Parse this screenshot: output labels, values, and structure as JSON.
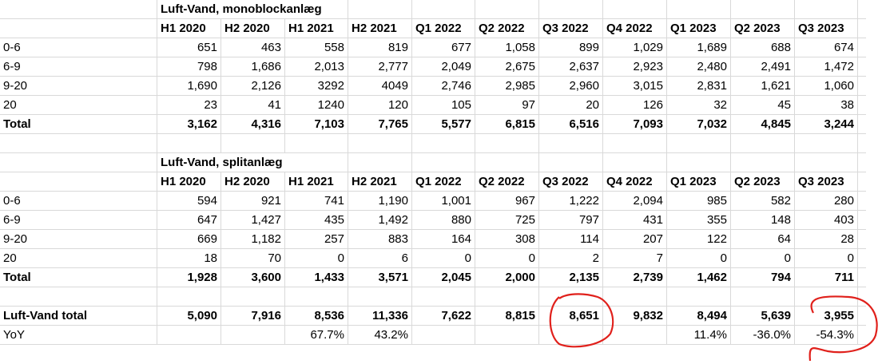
{
  "tables": [
    {
      "title": "Luft-Vand, monoblockanlæg",
      "periods": [
        "H1 2020",
        "H2 2020",
        "H1 2021",
        "H2 2021",
        "Q1 2022",
        "Q2 2022",
        "Q3 2022",
        "Q4 2022",
        "Q1 2023",
        "Q2 2023",
        "Q3 2023"
      ],
      "rows": [
        {
          "label": "0-6",
          "values": [
            "651",
            "463",
            "558",
            "819",
            "677",
            "1,058",
            "899",
            "1,029",
            "1,689",
            "688",
            "674"
          ]
        },
        {
          "label": "6-9",
          "values": [
            "798",
            "1,686",
            "2,013",
            "2,777",
            "2,049",
            "2,675",
            "2,637",
            "2,923",
            "2,480",
            "2,491",
            "1,472"
          ]
        },
        {
          "label": "9-20",
          "values": [
            "1,690",
            "2,126",
            "3292",
            "4049",
            "2,746",
            "2,985",
            "2,960",
            "3,015",
            "2,831",
            "1,621",
            "1,060"
          ]
        },
        {
          "label": "20",
          "values": [
            "23",
            "41",
            "1240",
            "120",
            "105",
            "97",
            "20",
            "126",
            "32",
            "45",
            "38"
          ]
        },
        {
          "label": "Total",
          "values": [
            "3,162",
            "4,316",
            "7,103",
            "7,765",
            "5,577",
            "6,815",
            "6,516",
            "7,093",
            "7,032",
            "4,845",
            "3,244"
          ],
          "bold": true
        }
      ]
    },
    {
      "title": "Luft-Vand, splitanlæg",
      "periods": [
        "H1 2020",
        "H2 2020",
        "H1 2021",
        "H2 2021",
        "Q1 2022",
        "Q2 2022",
        "Q3 2022",
        "Q4 2022",
        "Q1 2023",
        "Q2 2023",
        "Q3 2023"
      ],
      "rows": [
        {
          "label": "0-6",
          "values": [
            "594",
            "921",
            "741",
            "1,190",
            "1,001",
            "967",
            "1,222",
            "2,094",
            "985",
            "582",
            "280"
          ]
        },
        {
          "label": "6-9",
          "values": [
            "647",
            "1,427",
            "435",
            "1,492",
            "880",
            "725",
            "797",
            "431",
            "355",
            "148",
            "403"
          ]
        },
        {
          "label": "9-20",
          "values": [
            "669",
            "1,182",
            "257",
            "883",
            "164",
            "308",
            "114",
            "207",
            "122",
            "64",
            "28"
          ]
        },
        {
          "label": "20",
          "values": [
            "18",
            "70",
            "0",
            "6",
            "0",
            "0",
            "2",
            "7",
            "0",
            "0",
            "0"
          ]
        },
        {
          "label": "Total",
          "values": [
            "1,928",
            "3,600",
            "1,433",
            "3,571",
            "2,045",
            "2,000",
            "2,135",
            "2,739",
            "1,462",
            "794",
            "711"
          ],
          "bold": true
        }
      ]
    }
  ],
  "summary": [
    {
      "label": "Luft-Vand total",
      "values": [
        "5,090",
        "7,916",
        "8,536",
        "11,336",
        "7,622",
        "8,815",
        "8,651",
        "9,832",
        "8,494",
        "5,639",
        "3,955"
      ],
      "bold": true
    },
    {
      "label": "YoY",
      "values": [
        "",
        "",
        "67.7%",
        "43.2%",
        "",
        "",
        "",
        "",
        "11.4%",
        "-36.0%",
        "-54.3%"
      ],
      "bold": false
    }
  ],
  "annotation_color": "#e0201b"
}
